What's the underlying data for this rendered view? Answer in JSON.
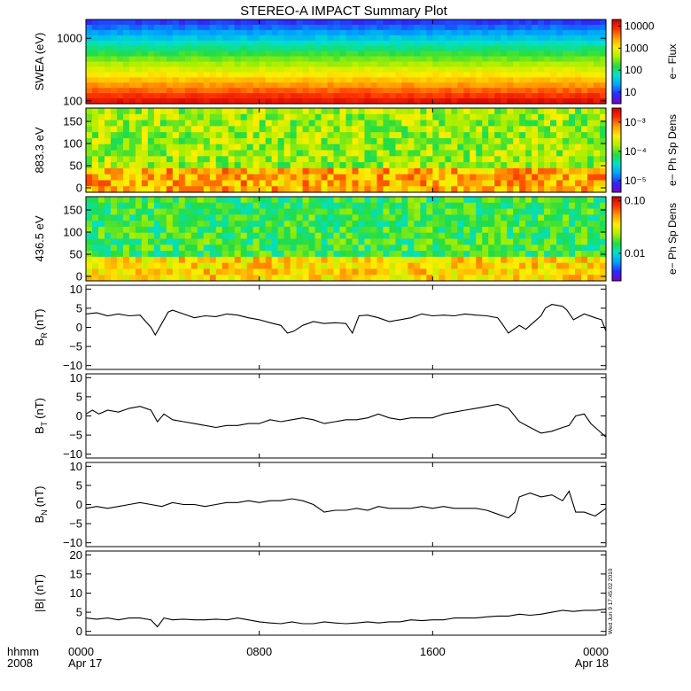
{
  "title": "STEREO-A IMPACT Summary Plot",
  "colors": {
    "spectrum": [
      "#7a00cc",
      "#2a2aff",
      "#00a0ff",
      "#00e0d0",
      "#22dd44",
      "#aaee00",
      "#ffee00",
      "#ffa000",
      "#ff3000",
      "#cc0000"
    ],
    "line": "#000000",
    "axis": "#000000"
  },
  "x_axis": {
    "range_hours": [
      0,
      24
    ],
    "ticks": [
      {
        "hour": 0,
        "top": "0000",
        "bottom": "Apr 17"
      },
      {
        "hour": 8,
        "top": "0800",
        "bottom": ""
      },
      {
        "hour": 16,
        "top": "1600",
        "bottom": ""
      },
      {
        "hour": 24,
        "top": "0000",
        "bottom": "Apr 18"
      }
    ],
    "corner_label_top": "hhmm",
    "corner_label_bottom": "2008"
  },
  "timestamp": "Wed Jun  9 17:45:02 2010",
  "chart_data": [
    {
      "type": "heatmap",
      "ylabel": "SWEA (eV)",
      "scale": "log",
      "ylim": [
        90,
        2000
      ],
      "yticks": [
        {
          "v": 100,
          "label": "100"
        },
        {
          "v": 1000,
          "label": "1000"
        }
      ],
      "colorbar": {
        "label": "e− Flux",
        "scale": "log",
        "range": [
          3,
          20000
        ],
        "ticks": [
          {
            "v": 10,
            "label": "10"
          },
          {
            "v": 100,
            "label": "100"
          },
          {
            "v": 1000,
            "label": "1000"
          },
          {
            "v": 10000,
            "label": "10000"
          }
        ]
      }
    },
    {
      "type": "heatmap",
      "ylabel": "883.3 eV",
      "ylim": [
        -10,
        180
      ],
      "yticks": [
        {
          "v": 0,
          "label": "0"
        },
        {
          "v": 50,
          "label": "50"
        },
        {
          "v": 100,
          "label": "100"
        },
        {
          "v": 150,
          "label": "150"
        }
      ],
      "colorbar": {
        "label": "e− Ph Sp Dens",
        "scale": "log",
        "range": [
          4e-06,
          0.003
        ],
        "ticks": [
          {
            "v": 1e-05,
            "label": "10⁻⁵"
          },
          {
            "v": 0.0001,
            "label": "10⁻⁴"
          },
          {
            "v": 0.001,
            "label": "10⁻³"
          }
        ]
      }
    },
    {
      "type": "heatmap",
      "ylabel": "436.5 eV",
      "ylim": [
        -10,
        180
      ],
      "yticks": [
        {
          "v": 0,
          "label": "0"
        },
        {
          "v": 50,
          "label": "50"
        },
        {
          "v": 100,
          "label": "100"
        },
        {
          "v": 150,
          "label": "150"
        }
      ],
      "colorbar": {
        "label": "e− Ph Sp Dens",
        "scale": "log",
        "range": [
          0.003,
          0.12
        ],
        "ticks": [
          {
            "v": 0.01,
            "label": "0.01"
          },
          {
            "v": 0.1,
            "label": "0.10"
          }
        ]
      }
    },
    {
      "type": "line",
      "ylabel": "B",
      "ylabel_sub": "R",
      "ylabel_unit": "(nT)",
      "ylim": [
        -11,
        11
      ],
      "yticks": [
        {
          "v": -10,
          "label": "−10"
        },
        {
          "v": -5,
          "label": "−5"
        },
        {
          "v": 0,
          "label": "0"
        },
        {
          "v": 5,
          "label": "5"
        },
        {
          "v": 10,
          "label": "10"
        }
      ],
      "x": [
        0,
        0.5,
        1,
        1.5,
        2,
        2.5,
        3,
        3.2,
        3.5,
        3.8,
        4,
        4.5,
        5,
        5.5,
        6,
        6.5,
        7,
        7.5,
        8,
        8.5,
        9,
        9.3,
        9.6,
        10,
        10.5,
        11,
        11.5,
        12,
        12.3,
        12.6,
        13,
        13.5,
        14,
        14.5,
        15,
        15.5,
        16,
        16.5,
        17,
        17.5,
        18,
        18.5,
        19,
        19.2,
        19.5,
        20,
        20.3,
        20.6,
        21,
        21.2,
        21.5,
        22,
        22.2,
        22.5,
        23,
        23.5,
        23.8,
        24
      ],
      "values": [
        3.5,
        3.8,
        3,
        3.5,
        3,
        3.2,
        0,
        -2,
        1,
        4,
        4.5,
        3.5,
        2.5,
        3,
        2.8,
        3.5,
        3.2,
        2.5,
        2,
        1.2,
        0.5,
        -1.5,
        -1,
        0.5,
        1.5,
        1,
        1.2,
        1,
        -1.5,
        3,
        3.2,
        2.5,
        1.5,
        2,
        2.5,
        3.5,
        3,
        3.2,
        3,
        3.5,
        3.2,
        3,
        2.5,
        1,
        -1.5,
        0.5,
        -0.5,
        1,
        3,
        5,
        6,
        5.5,
        4.5,
        2,
        3.5,
        2.5,
        2,
        -1
      ]
    },
    {
      "type": "line",
      "ylabel": "B",
      "ylabel_sub": "T",
      "ylabel_unit": "(nT)",
      "ylim": [
        -11,
        11
      ],
      "yticks": [
        {
          "v": -10,
          "label": "−10"
        },
        {
          "v": -5,
          "label": "−5"
        },
        {
          "v": 0,
          "label": "0"
        },
        {
          "v": 5,
          "label": "5"
        },
        {
          "v": 10,
          "label": "10"
        }
      ],
      "x": [
        0,
        0.3,
        0.6,
        1,
        1.5,
        2,
        2.5,
        3,
        3.3,
        3.6,
        4,
        4.5,
        5,
        5.5,
        6,
        6.5,
        7,
        7.5,
        8,
        8.5,
        9,
        9.5,
        10,
        10.5,
        11,
        11.5,
        12,
        12.5,
        13,
        13.5,
        14,
        14.5,
        15,
        15.5,
        16,
        16.5,
        17,
        17.5,
        18,
        18.5,
        19,
        19.5,
        20,
        20.5,
        21,
        21.5,
        22,
        22.3,
        22.6,
        23,
        23.3,
        23.6,
        24
      ],
      "values": [
        0.5,
        1.5,
        0.5,
        1.5,
        1,
        2,
        2.5,
        1.5,
        -1.5,
        0.5,
        -1,
        -1.5,
        -2,
        -2.5,
        -3,
        -2.5,
        -2.5,
        -2,
        -2,
        -1,
        -1.5,
        -1,
        -0.5,
        -1,
        -2,
        -1.5,
        -1,
        -1,
        -0.5,
        0.5,
        -0.5,
        -1,
        -0.5,
        -0.5,
        -0.5,
        0.5,
        1,
        1.5,
        2,
        2.5,
        3,
        2,
        -1.5,
        -3,
        -4.5,
        -4,
        -3,
        -2.5,
        0,
        0.5,
        -2,
        -3.5,
        -5.5
      ]
    },
    {
      "type": "line",
      "ylabel": "B",
      "ylabel_sub": "N",
      "ylabel_unit": "(nT)",
      "ylim": [
        -11,
        11
      ],
      "yticks": [
        {
          "v": -10,
          "label": "−10"
        },
        {
          "v": -5,
          "label": "−5"
        },
        {
          "v": 0,
          "label": "0"
        },
        {
          "v": 5,
          "label": "5"
        },
        {
          "v": 10,
          "label": "10"
        }
      ],
      "x": [
        0,
        0.5,
        1,
        1.5,
        2,
        2.5,
        3,
        3.5,
        4,
        4.5,
        5,
        5.5,
        6,
        6.5,
        7,
        7.5,
        8,
        8.5,
        9,
        9.5,
        10,
        10.5,
        11,
        11.5,
        12,
        12.5,
        13,
        13.5,
        14,
        14.5,
        15,
        15.5,
        16,
        16.5,
        17,
        17.5,
        18,
        18.5,
        19,
        19.5,
        19.8,
        20,
        20.5,
        21,
        21.5,
        22,
        22.3,
        22.6,
        23,
        23.5,
        24
      ],
      "values": [
        -1,
        -0.5,
        -1,
        -0.5,
        0,
        0.5,
        0,
        -0.5,
        0.5,
        0,
        0,
        -0.5,
        0,
        0.5,
        0.5,
        1,
        0.5,
        1,
        1,
        1.5,
        1,
        0,
        -2,
        -1.5,
        -1.5,
        -1,
        -1.5,
        -0.5,
        -1,
        -1,
        -1,
        -0.5,
        -1,
        -0.5,
        -1,
        -1,
        -1,
        -1.5,
        -2.5,
        -3.5,
        -2,
        2,
        3,
        2,
        2.5,
        1,
        3.5,
        -2,
        -2,
        -3,
        -1
      ]
    },
    {
      "type": "line",
      "ylabel": "|B| (nT)",
      "ylim": [
        -1,
        21
      ],
      "yticks": [
        {
          "v": 0,
          "label": "0"
        },
        {
          "v": 5,
          "label": "5"
        },
        {
          "v": 10,
          "label": "10"
        },
        {
          "v": 15,
          "label": "15"
        },
        {
          "v": 20,
          "label": "20"
        }
      ],
      "x": [
        0,
        0.5,
        1,
        1.5,
        2,
        2.5,
        3,
        3.3,
        3.6,
        4,
        4.5,
        5,
        5.5,
        6,
        6.5,
        7,
        7.5,
        8,
        8.5,
        9,
        9.5,
        10,
        10.5,
        11,
        11.5,
        12,
        12.5,
        13,
        13.5,
        14,
        14.5,
        15,
        15.5,
        16,
        16.5,
        17,
        17.5,
        18,
        18.5,
        19,
        19.5,
        20,
        20.5,
        21,
        21.5,
        22,
        22.5,
        23,
        23.5,
        24
      ],
      "values": [
        3.5,
        3.2,
        3.5,
        3,
        3.5,
        3.5,
        3,
        1.2,
        3.5,
        3,
        3.2,
        3,
        3,
        3.2,
        3,
        3.5,
        3,
        2.5,
        2.2,
        2,
        2.5,
        2,
        2,
        2.5,
        2.2,
        2,
        2.2,
        2.5,
        2.2,
        2.5,
        2.5,
        3,
        2.8,
        3,
        3,
        3.5,
        3.5,
        3.5,
        3.8,
        4,
        4,
        4.5,
        4.2,
        4.5,
        5,
        5.5,
        5.2,
        5.5,
        5.5,
        5.8
      ]
    }
  ]
}
